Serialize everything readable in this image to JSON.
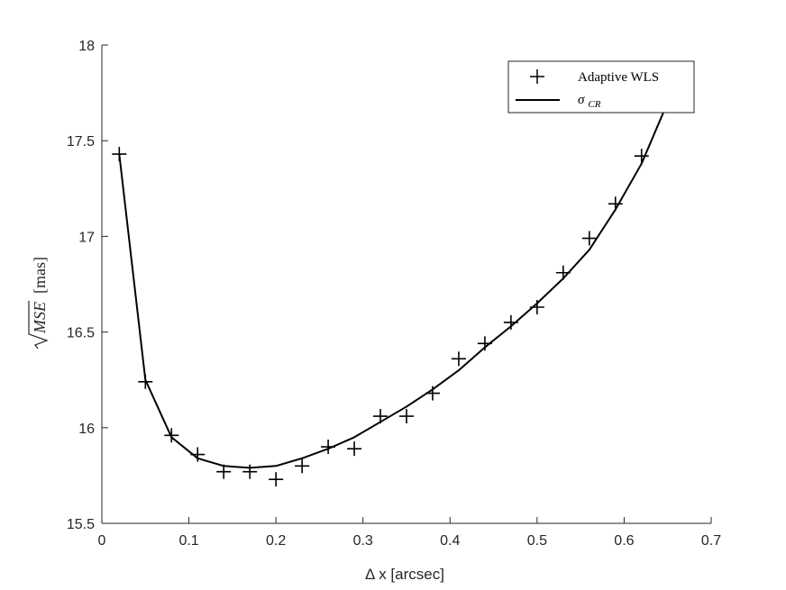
{
  "chart_data": {
    "type": "line",
    "title": "",
    "xlabel": "Δ x [arcsec]",
    "ylabel": "√MSE [mas]",
    "ylabel_parts": {
      "radicand": "MSE",
      "unit": "[mas]"
    },
    "xlim": [
      0,
      0.7
    ],
    "ylim": [
      15.5,
      18
    ],
    "xticks": [
      0,
      0.1,
      0.2,
      0.3,
      0.4,
      0.5,
      0.6,
      0.7
    ],
    "xtick_labels": [
      "0",
      "0.1",
      "0.2",
      "0.3",
      "0.4",
      "0.5",
      "0.6",
      "0.7"
    ],
    "yticks": [
      15.5,
      16,
      16.5,
      17,
      17.5,
      18
    ],
    "ytick_labels": [
      "15.5",
      "16",
      "16.5",
      "17",
      "17.5",
      "18"
    ],
    "grid": false,
    "legend_placement": "top-right",
    "legend": {
      "adaptive_label": "Adaptive WLS",
      "sigma_symbol": "σ",
      "sigma_subscript": "CR"
    },
    "series": [
      {
        "name": "Adaptive WLS",
        "style": "marker-plus",
        "color": "#000000",
        "x": [
          0.02,
          0.05,
          0.08,
          0.11,
          0.14,
          0.17,
          0.2,
          0.23,
          0.26,
          0.29,
          0.32,
          0.35,
          0.38,
          0.41,
          0.44,
          0.47,
          0.5,
          0.53,
          0.56,
          0.59,
          0.62
        ],
        "y": [
          17.43,
          16.24,
          15.96,
          15.86,
          15.77,
          15.77,
          15.73,
          15.8,
          15.9,
          15.89,
          16.06,
          16.06,
          16.18,
          16.36,
          16.44,
          16.55,
          16.63,
          16.81,
          16.99,
          17.17,
          17.42
        ]
      },
      {
        "name": "σCR",
        "style": "solid-line",
        "color": "#000000",
        "x": [
          0.02,
          0.05,
          0.08,
          0.11,
          0.14,
          0.17,
          0.2,
          0.23,
          0.26,
          0.29,
          0.32,
          0.35,
          0.38,
          0.41,
          0.44,
          0.47,
          0.5,
          0.53,
          0.56,
          0.59,
          0.62,
          0.65
        ],
        "y": [
          17.43,
          16.25,
          15.95,
          15.84,
          15.8,
          15.79,
          15.8,
          15.84,
          15.89,
          15.95,
          16.03,
          16.11,
          16.2,
          16.3,
          16.42,
          16.53,
          16.65,
          16.78,
          16.93,
          17.14,
          17.38,
          17.7
        ]
      }
    ]
  }
}
